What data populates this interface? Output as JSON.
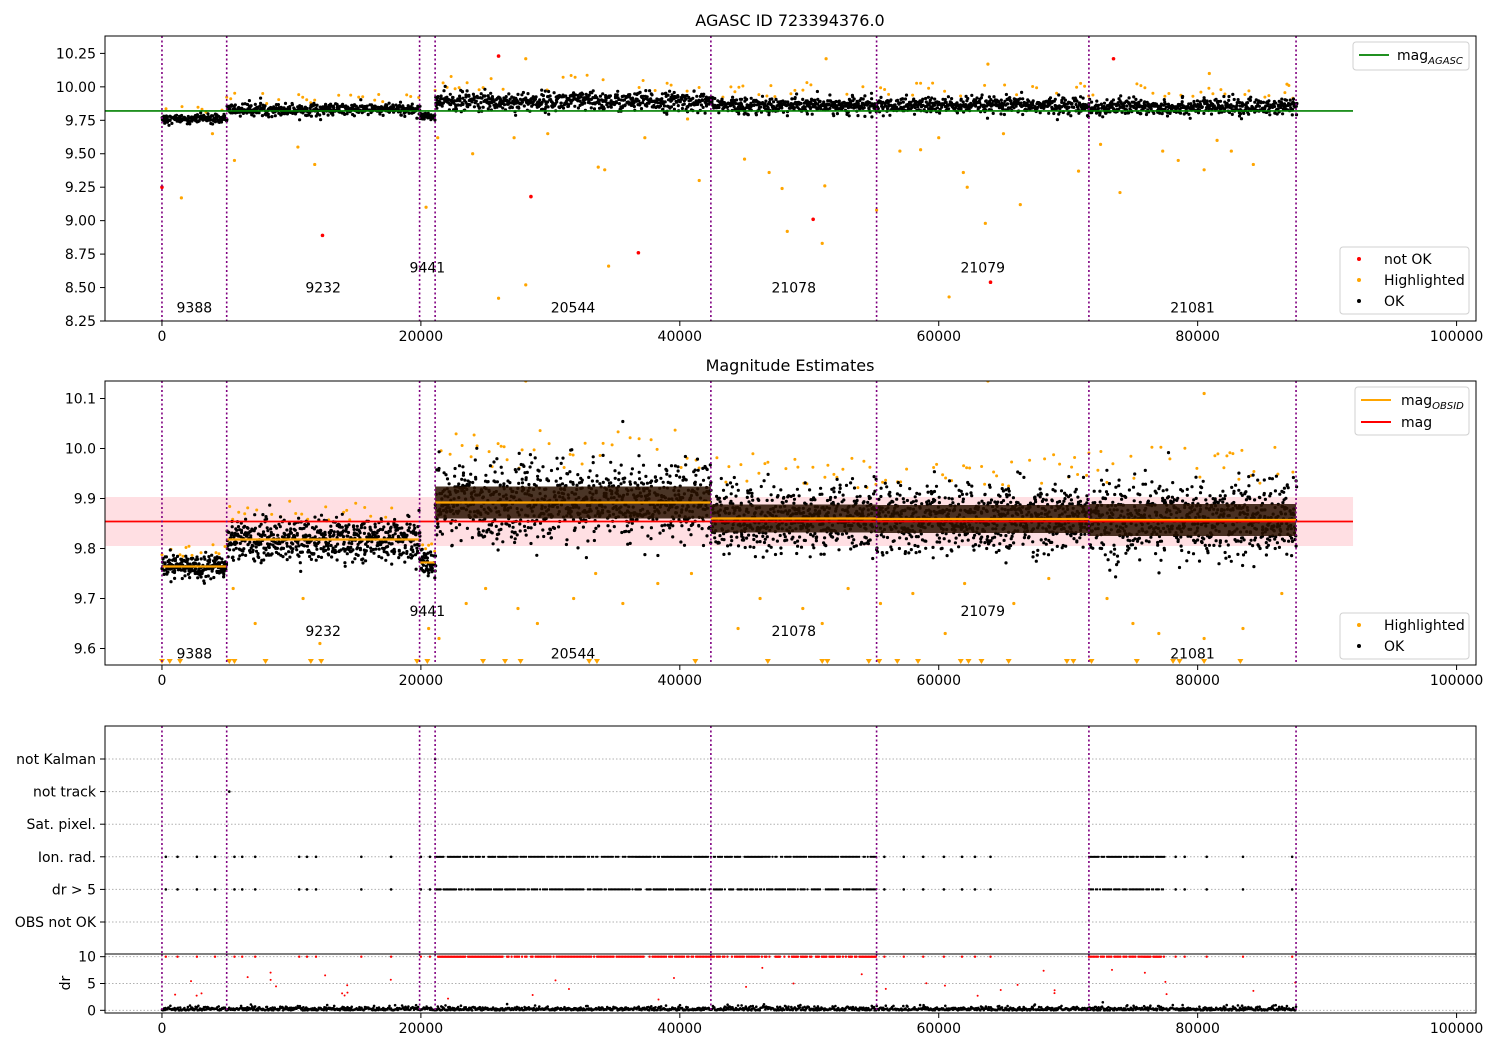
{
  "figure": {
    "panels": [
      {
        "id": "panel1",
        "title": "AGASC ID 723394376.0"
      },
      {
        "id": "panel2",
        "title": "Magnitude Estimates"
      },
      {
        "id": "panel3",
        "title": ""
      }
    ]
  },
  "colors": {
    "ok": "#000000",
    "highlighted": "#ffa500",
    "not_ok": "#ff0000",
    "agasc_line": "#008000",
    "obsid_line": "#ffa500",
    "mag_line": "#ff0000",
    "mag_band": "#ffd7dc",
    "obs_boundary": "#800080",
    "grid": "#b0b0b0"
  },
  "chart_data": [
    {
      "type": "scatter",
      "title": "AGASC ID 723394376.0",
      "xlim": [
        -4400,
        101500
      ],
      "ylim": [
        8.25,
        10.38
      ],
      "x_ticks": [
        0,
        20000,
        40000,
        60000,
        80000,
        100000
      ],
      "y_ticks": [
        8.25,
        8.5,
        8.75,
        9.0,
        9.25,
        9.5,
        9.75,
        10.0,
        10.25
      ],
      "y_tick_labels": [
        "8.25",
        "8.50",
        "8.75",
        "9.00",
        "9.25",
        "9.50",
        "9.75",
        "10.00",
        "10.25"
      ],
      "legend": [
        {
          "label": "mag",
          "sub": "AGASC",
          "style": "line",
          "color": "#008000"
        }
      ],
      "legend2": [
        {
          "label": "not OK",
          "style": "dot",
          "color": "#ff0000"
        },
        {
          "label": "Highlighted",
          "style": "dot",
          "color": "#ffa500"
        },
        {
          "label": "OK",
          "style": "dot",
          "color": "#000000"
        }
      ],
      "mag_agasc": 9.82,
      "mag_agasc_xrange": [
        -4400,
        92000
      ],
      "observations": [
        {
          "obsid": "9388",
          "x_start": 0,
          "x_end": 5000,
          "mag": 9.76,
          "spread": 0.04,
          "label_y": 8.35
        },
        {
          "obsid": "9232",
          "x_start": 5000,
          "x_end": 19900,
          "mag": 9.83,
          "spread": 0.05,
          "label_y": 8.5
        },
        {
          "obsid": "9441",
          "x_start": 19900,
          "x_end": 21100,
          "mag": 9.78,
          "spread": 0.03,
          "label_y": 8.65
        },
        {
          "obsid": "20544",
          "x_start": 21100,
          "x_end": 42400,
          "mag": 9.89,
          "spread": 0.08,
          "label_y": 8.35
        },
        {
          "obsid": "21078",
          "x_start": 42400,
          "x_end": 55200,
          "mag": 9.86,
          "spread": 0.07,
          "label_y": 8.5
        },
        {
          "obsid": "21079",
          "x_start": 55200,
          "x_end": 71600,
          "mag": 9.86,
          "spread": 0.07,
          "label_y": 8.65
        },
        {
          "obsid": "21081",
          "x_start": 71600,
          "x_end": 87600,
          "mag": 9.85,
          "spread": 0.07,
          "label_y": 8.35
        }
      ],
      "boundaries": [
        0,
        5000,
        19900,
        21100,
        42400,
        55200,
        71600,
        87600
      ],
      "highlighted_outliers": [
        [
          1500,
          9.17
        ],
        [
          3900,
          9.65
        ],
        [
          5600,
          9.45
        ],
        [
          10500,
          9.55
        ],
        [
          11800,
          9.42
        ],
        [
          20400,
          9.1
        ],
        [
          21300,
          9.62
        ],
        [
          24000,
          9.5
        ],
        [
          26000,
          8.42
        ],
        [
          27200,
          9.62
        ],
        [
          28100,
          8.52
        ],
        [
          28100,
          10.21
        ],
        [
          29800,
          9.65
        ],
        [
          33700,
          9.4
        ],
        [
          34200,
          9.38
        ],
        [
          34500,
          8.66
        ],
        [
          37300,
          9.62
        ],
        [
          40600,
          9.76
        ],
        [
          41500,
          9.3
        ],
        [
          45000,
          9.46
        ],
        [
          46900,
          9.36
        ],
        [
          47900,
          9.24
        ],
        [
          48300,
          8.92
        ],
        [
          51000,
          8.83
        ],
        [
          51200,
          9.26
        ],
        [
          51300,
          10.21
        ],
        [
          55200,
          9.08
        ],
        [
          57000,
          9.52
        ],
        [
          58600,
          9.53
        ],
        [
          60000,
          9.62
        ],
        [
          60800,
          8.43
        ],
        [
          61900,
          9.36
        ],
        [
          62200,
          9.25
        ],
        [
          63600,
          8.98
        ],
        [
          63800,
          10.17
        ],
        [
          65000,
          9.65
        ],
        [
          66300,
          9.12
        ],
        [
          70800,
          9.37
        ],
        [
          72500,
          9.57
        ],
        [
          74000,
          9.21
        ],
        [
          77300,
          9.52
        ],
        [
          78500,
          9.45
        ],
        [
          80500,
          9.38
        ],
        [
          80900,
          10.1
        ],
        [
          81500,
          9.6
        ],
        [
          82600,
          9.52
        ],
        [
          84300,
          9.42
        ],
        [
          86900,
          10.02
        ]
      ],
      "not_ok_points": [
        [
          0,
          9.25
        ],
        [
          12400,
          8.89
        ],
        [
          26000,
          10.23
        ],
        [
          28500,
          9.18
        ],
        [
          36800,
          8.76
        ],
        [
          50300,
          9.01
        ],
        [
          64000,
          8.54
        ],
        [
          73500,
          10.21
        ]
      ]
    },
    {
      "type": "scatter",
      "title": "Magnitude Estimates",
      "xlim": [
        -4400,
        101500
      ],
      "ylim": [
        9.567,
        10.135
      ],
      "x_ticks": [
        0,
        20000,
        40000,
        60000,
        80000,
        100000
      ],
      "y_ticks": [
        9.6,
        9.7,
        9.8,
        9.9,
        10.0,
        10.1
      ],
      "y_tick_labels": [
        "9.6",
        "9.7",
        "9.8",
        "9.9",
        "10.0",
        "10.1"
      ],
      "legend": [
        {
          "label": "mag",
          "sub": "OBSID",
          "style": "line",
          "color": "#ffa500"
        },
        {
          "label": "mag",
          "sub": "",
          "style": "line",
          "color": "#ff0000"
        }
      ],
      "legend2": [
        {
          "label": "Highlighted",
          "style": "dot",
          "color": "#ffa500"
        },
        {
          "label": "OK",
          "style": "dot",
          "color": "#000000"
        }
      ],
      "mag": 9.854,
      "mag_band": [
        9.805,
        9.903
      ],
      "mag_band_xrange": [
        -4400,
        92000
      ],
      "obsid_mags": [
        {
          "x_start": 0,
          "x_end": 5000,
          "mag": 9.764,
          "label_y": 9.59
        },
        {
          "x_start": 5000,
          "x_end": 19900,
          "mag": 9.818,
          "label_y": 9.635
        },
        {
          "x_start": 19900,
          "x_end": 21100,
          "mag": 9.772,
          "label_y": 9.675
        },
        {
          "x_start": 21100,
          "x_end": 42400,
          "mag": 9.892,
          "label_y": 9.59
        },
        {
          "x_start": 42400,
          "x_end": 55200,
          "mag": 9.86,
          "label_y": 9.635
        },
        {
          "x_start": 55200,
          "x_end": 71600,
          "mag": 9.859,
          "label_y": 9.675
        },
        {
          "x_start": 71600,
          "x_end": 87600,
          "mag": 9.857,
          "label_y": 9.59
        }
      ],
      "highlighted_outliers": [
        [
          5500,
          9.72
        ],
        [
          7200,
          9.65
        ],
        [
          10900,
          9.7
        ],
        [
          12200,
          9.61
        ],
        [
          20600,
          9.64
        ],
        [
          21400,
          9.62
        ],
        [
          23500,
          9.69
        ],
        [
          25000,
          9.72
        ],
        [
          27500,
          9.68
        ],
        [
          29000,
          9.65
        ],
        [
          31800,
          9.7
        ],
        [
          33500,
          9.75
        ],
        [
          35600,
          9.69
        ],
        [
          38300,
          9.73
        ],
        [
          40900,
          9.75
        ],
        [
          44500,
          9.64
        ],
        [
          46200,
          9.7
        ],
        [
          49500,
          9.68
        ],
        [
          51000,
          9.65
        ],
        [
          53000,
          9.72
        ],
        [
          55500,
          9.69
        ],
        [
          58000,
          9.71
        ],
        [
          60500,
          9.63
        ],
        [
          62000,
          9.73
        ],
        [
          65800,
          9.69
        ],
        [
          68500,
          9.74
        ],
        [
          73000,
          9.7
        ],
        [
          75000,
          9.65
        ],
        [
          77000,
          9.63
        ],
        [
          80500,
          9.62
        ],
        [
          83500,
          9.64
        ],
        [
          86500,
          9.71
        ],
        [
          28100,
          10.135
        ],
        [
          63800,
          10.135
        ],
        [
          80500,
          10.11
        ]
      ],
      "clipped_markers_x": [
        0,
        600,
        1400,
        5200,
        5600,
        8000,
        11500,
        12300,
        19700,
        20500,
        24800,
        26500,
        27700,
        33000,
        33600,
        41200,
        46800,
        51000,
        51400,
        54600,
        55400,
        56800,
        58400,
        61700,
        62300,
        63300,
        65400,
        69900,
        70400,
        71800,
        75300,
        78100,
        78600,
        80500,
        83300
      ]
    },
    {
      "type": "scatter",
      "title": "",
      "xlim": [
        -4400,
        101500
      ],
      "x_ticks": [
        0,
        20000,
        40000,
        60000,
        80000,
        100000
      ],
      "flag_categories": [
        "not Kalman",
        "not track",
        "Sat. pixel.",
        "Ion. rad.",
        "dr > 5",
        "OBS not OK"
      ],
      "dr_ylim": [
        0,
        10
      ],
      "dr_ticks": [
        0,
        5,
        10
      ],
      "dr_tick_labels": [
        "0",
        "5",
        "10"
      ],
      "dr_ylabel": "dr",
      "flag_ranges": [
        {
          "flag": "Ion. rad.",
          "x_ranges": [
            [
              21100,
              42400
            ],
            [
              42400,
              55200
            ],
            [
              71600,
              77500
            ]
          ]
        },
        {
          "flag": "dr > 5",
          "x_ranges": [
            [
              21100,
              42400
            ],
            [
              42400,
              55200
            ],
            [
              71600,
              77500
            ]
          ]
        }
      ],
      "flag_sparse": [
        {
          "flag": "Ion. rad.",
          "x": [
            300,
            1200,
            2700,
            4100,
            5600,
            6200,
            7200,
            10600,
            11200,
            11900,
            15400,
            17700,
            20000,
            20700,
            55800,
            57300,
            58800,
            60400,
            61800,
            62800,
            64000,
            78300,
            79000,
            80700,
            83500,
            87300
          ]
        },
        {
          "flag": "dr > 5",
          "x": [
            300,
            1200,
            2700,
            4100,
            5600,
            6200,
            7200,
            10600,
            11200,
            11900,
            15400,
            17700,
            20000,
            20700,
            55800,
            57300,
            58800,
            60400,
            61800,
            62800,
            64000,
            78300,
            79000,
            80700,
            83500,
            87300
          ]
        },
        {
          "flag": "not track",
          "x": [
            5200
          ]
        },
        {
          "flag": "not Kalman",
          "x": [
            21100
          ]
        }
      ]
    }
  ]
}
